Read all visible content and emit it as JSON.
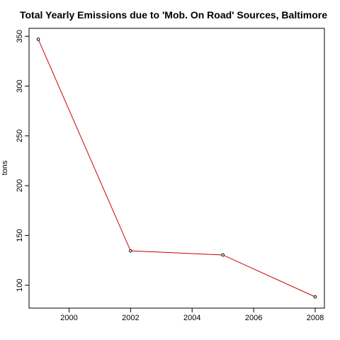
{
  "chart_data": {
    "type": "line",
    "title": "Total Yearly Emissions due to 'Mob. On Road' Sources, Baltimore",
    "xlabel": "",
    "ylabel": "tons",
    "x": [
      1999,
      2002,
      2005,
      2008
    ],
    "series": [
      {
        "values": [
          347,
          134.5,
          130.4,
          88.3
        ],
        "color": "#cc0000"
      }
    ],
    "xlim": [
      1998.7,
      2008.3
    ],
    "ylim": [
      77,
      358
    ],
    "xticks": [
      2000,
      2002,
      2004,
      2006,
      2008
    ],
    "xtick_labels": [
      "2000",
      "2002",
      "2004",
      "2006",
      "2008"
    ],
    "yticks": [
      100,
      150,
      200,
      250,
      300,
      350
    ],
    "ytick_labels": [
      "100",
      "150",
      "200",
      "250",
      "300",
      "350"
    ],
    "grid": false,
    "legend": "none",
    "marker": "open-circle",
    "marker_color": "#000000",
    "axis_color": "#000000",
    "background": "#ffffff"
  }
}
